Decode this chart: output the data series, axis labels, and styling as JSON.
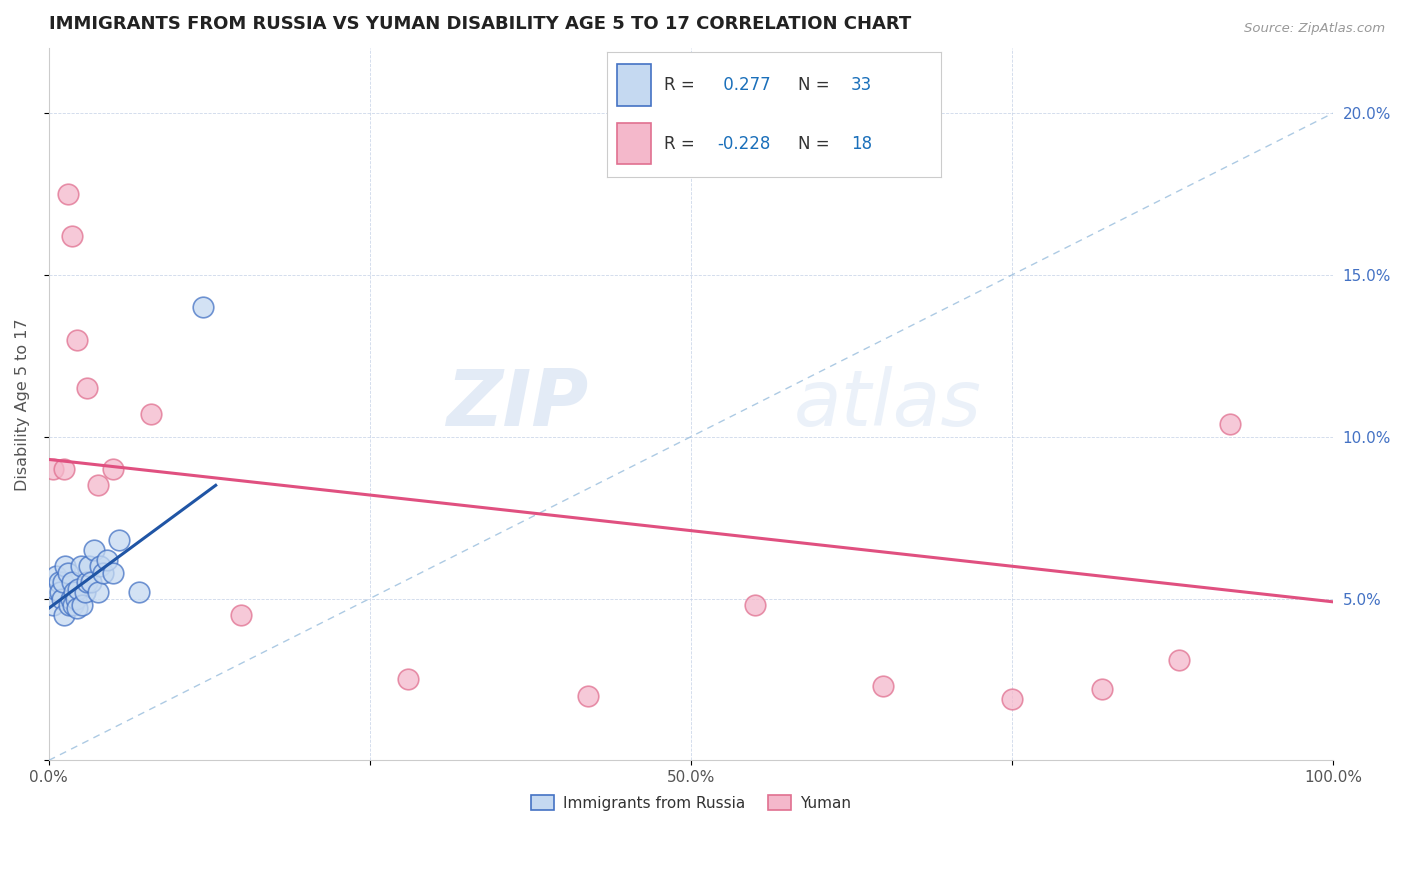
{
  "title": "IMMIGRANTS FROM RUSSIA VS YUMAN DISABILITY AGE 5 TO 17 CORRELATION CHART",
  "source": "Source: ZipAtlas.com",
  "ylabel": "Disability Age 5 to 17",
  "legend_label_1": "Immigrants from Russia",
  "legend_label_2": "Yuman",
  "r1": "0.277",
  "n1": "33",
  "r2": "-0.228",
  "n2": "18",
  "xlim": [
    0.0,
    1.0
  ],
  "ylim": [
    0.0,
    0.22
  ],
  "xticks": [
    0.0,
    0.25,
    0.5,
    0.75,
    1.0
  ],
  "xtick_labels": [
    "0.0%",
    "",
    "50.0%",
    "",
    "100.0%"
  ],
  "yticks": [
    0.0,
    0.05,
    0.1,
    0.15,
    0.2
  ],
  "ytick_labels": [
    "",
    "5.0%",
    "10.0%",
    "15.0%",
    "20.0%"
  ],
  "color_russia_fill": "#c5d9f1",
  "color_russia_edge": "#4472c4",
  "color_russia_line": "#2055a5",
  "color_yuman_fill": "#f4b8cb",
  "color_yuman_edge": "#e07090",
  "color_yuman_line": "#e05080",
  "color_diagonal": "#8ab4d8",
  "background": "#ffffff",
  "russia_x": [
    0.003,
    0.005,
    0.006,
    0.008,
    0.009,
    0.01,
    0.011,
    0.012,
    0.013,
    0.015,
    0.016,
    0.017,
    0.018,
    0.019,
    0.02,
    0.021,
    0.022,
    0.023,
    0.025,
    0.026,
    0.028,
    0.03,
    0.031,
    0.033,
    0.035,
    0.038,
    0.04,
    0.042,
    0.045,
    0.05,
    0.055,
    0.07,
    0.12
  ],
  "russia_y": [
    0.048,
    0.053,
    0.057,
    0.055,
    0.052,
    0.05,
    0.055,
    0.045,
    0.06,
    0.058,
    0.048,
    0.05,
    0.055,
    0.048,
    0.052,
    0.05,
    0.047,
    0.053,
    0.06,
    0.048,
    0.052,
    0.055,
    0.06,
    0.055,
    0.065,
    0.052,
    0.06,
    0.058,
    0.062,
    0.058,
    0.068,
    0.052,
    0.14
  ],
  "yuman_x": [
    0.003,
    0.012,
    0.015,
    0.018,
    0.022,
    0.03,
    0.038,
    0.05,
    0.08,
    0.15,
    0.28,
    0.42,
    0.55,
    0.65,
    0.75,
    0.82,
    0.88,
    0.92
  ],
  "yuman_y": [
    0.09,
    0.09,
    0.175,
    0.162,
    0.13,
    0.115,
    0.085,
    0.09,
    0.107,
    0.045,
    0.025,
    0.02,
    0.048,
    0.023,
    0.019,
    0.022,
    0.031,
    0.104
  ],
  "russia_line_x0": 0.0,
  "russia_line_y0": 0.047,
  "russia_line_x1": 0.13,
  "russia_line_y1": 0.085,
  "yuman_line_x0": 0.0,
  "yuman_line_y0": 0.093,
  "yuman_line_x1": 1.0,
  "yuman_line_y1": 0.049
}
